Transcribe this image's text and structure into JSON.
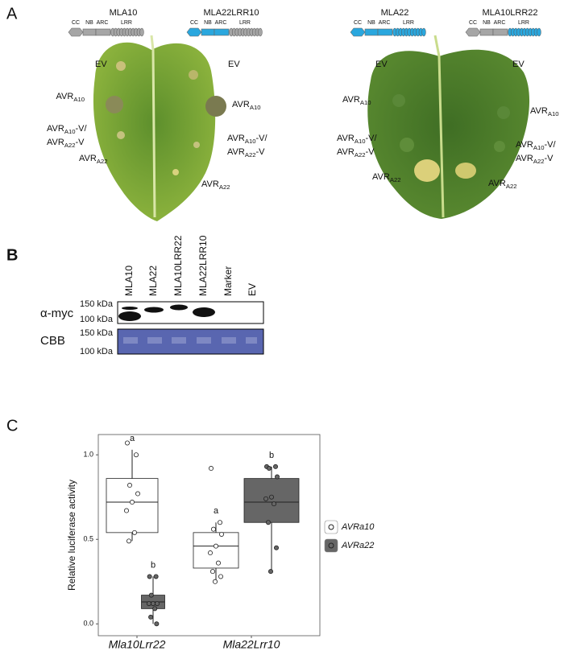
{
  "panel_a": {
    "label": "A",
    "leaves": [
      {
        "constructs": [
          {
            "name": "MLA10",
            "domains": [
              {
                "label": "CC",
                "color": "#a6a6a6"
              },
              {
                "label": "NB",
                "color": "#a6a6a6"
              },
              {
                "label": "ARC",
                "color": "#a6a6a6"
              },
              {
                "label": "LRR",
                "color": "#a6a6a6"
              }
            ]
          },
          {
            "name": "MLA22LRR10",
            "domains": [
              {
                "label": "CC",
                "color": "#2aa7de"
              },
              {
                "label": "NB",
                "color": "#2aa7de"
              },
              {
                "label": "ARC",
                "color": "#2aa7de"
              },
              {
                "label": "LRR",
                "color": "#a6a6a6"
              }
            ]
          }
        ],
        "annotations": [
          [
            [
              {
                "text": "EV"
              }
            ]
          ],
          [
            [
              {
                "text": "AVR"
              },
              {
                "sub": "A10"
              }
            ]
          ],
          [
            [
              {
                "text": "AVR"
              },
              {
                "sub": "A10"
              },
              {
                "text": "-V/"
              }
            ],
            [
              {
                "text": "AVR"
              },
              {
                "sub": "A22"
              },
              {
                "text": "-V"
              }
            ]
          ],
          [
            [
              {
                "text": "AVR"
              },
              {
                "sub": "A22"
              }
            ]
          ],
          [
            [
              {
                "text": "EV"
              }
            ]
          ],
          [
            [
              {
                "text": "AVR"
              },
              {
                "sub": "A10"
              }
            ]
          ],
          [
            [
              {
                "text": "AVR"
              },
              {
                "sub": "A10"
              },
              {
                "text": "-V/"
              }
            ],
            [
              {
                "text": "AVR"
              },
              {
                "sub": "A22"
              },
              {
                "text": "-V"
              }
            ]
          ],
          [
            [
              {
                "text": "AVR"
              },
              {
                "sub": "A22"
              }
            ]
          ]
        ]
      },
      {
        "constructs": [
          {
            "name": "MLA22",
            "domains": [
              {
                "label": "CC",
                "color": "#2aa7de"
              },
              {
                "label": "NB",
                "color": "#2aa7de"
              },
              {
                "label": "ARC",
                "color": "#2aa7de"
              },
              {
                "label": "LRR",
                "color": "#2aa7de"
              }
            ]
          },
          {
            "name": "MLA10LRR22",
            "domains": [
              {
                "label": "CC",
                "color": "#a6a6a6"
              },
              {
                "label": "NB",
                "color": "#a6a6a6"
              },
              {
                "label": "ARC",
                "color": "#a6a6a6"
              },
              {
                "label": "LRR",
                "color": "#2aa7de"
              }
            ]
          }
        ],
        "annotations": [
          [
            [
              {
                "text": "EV"
              }
            ]
          ],
          [
            [
              {
                "text": "AVR"
              },
              {
                "sub": "A10"
              }
            ]
          ],
          [
            [
              {
                "text": "AVR"
              },
              {
                "sub": "A10"
              },
              {
                "text": "-V/"
              }
            ],
            [
              {
                "text": "AVR"
              },
              {
                "sub": "A22"
              },
              {
                "text": "-V"
              }
            ]
          ],
          [
            [
              {
                "text": "AVR"
              },
              {
                "sub": "A22"
              }
            ]
          ],
          [
            [
              {
                "text": "EV"
              }
            ]
          ],
          [
            [
              {
                "text": "AVR"
              },
              {
                "sub": "A10"
              }
            ]
          ],
          [
            [
              {
                "text": "AVR"
              },
              {
                "sub": "A10"
              },
              {
                "text": "-V/"
              }
            ],
            [
              {
                "text": "AVR"
              },
              {
                "sub": "A22"
              },
              {
                "text": "-V"
              }
            ]
          ],
          [
            [
              {
                "text": "AVR"
              },
              {
                "sub": "A22"
              }
            ]
          ]
        ]
      }
    ]
  },
  "panel_b": {
    "label": "B",
    "lanes": [
      "MLA10",
      "MLA22",
      "MLA10LRR22",
      "MLA22LRR10",
      "Marker",
      "EV"
    ],
    "blots": [
      {
        "name": "α-myc",
        "markers": [
          "150 kDa",
          "100 kDa"
        ]
      },
      {
        "name": "CBB",
        "markers": [
          "150 kDa",
          "100 kDa"
        ]
      }
    ]
  },
  "chart_data": {
    "type": "box",
    "panel_label": "C",
    "y_label": "Relative luciferase activity",
    "categories": [
      "Mla10Lrr22",
      "Mla22Lrr10"
    ],
    "ylim": [
      -0.07,
      1.12
    ],
    "yticks": [
      {
        "value": 0,
        "label": "0.0"
      },
      {
        "value": 0.5,
        "label": "0.5"
      },
      {
        "value": 1,
        "label": "1.0"
      }
    ],
    "series": [
      {
        "name": "AVRa10",
        "color": "#ffffff",
        "letters": [
          "a",
          "a"
        ],
        "boxes": [
          {
            "min": 0.49,
            "q1": 0.54,
            "median": 0.72,
            "q3": 0.86,
            "max": 1.03,
            "points": [
              1.07,
              1.0,
              0.82,
              0.77,
              0.72,
              0.67,
              0.54,
              0.49
            ]
          },
          {
            "min": 0.25,
            "q1": 0.33,
            "median": 0.46,
            "q3": 0.54,
            "max": 0.6,
            "points": [
              0.92,
              0.6,
              0.56,
              0.53,
              0.46,
              0.42,
              0.36,
              0.31,
              0.28,
              0.25
            ]
          }
        ]
      },
      {
        "name": "AVRa22",
        "color": "#666666",
        "letters": [
          "b",
          "b"
        ],
        "boxes": [
          {
            "min": 0.0,
            "q1": 0.09,
            "median": 0.13,
            "q3": 0.17,
            "max": 0.28,
            "points": [
              0.28,
              0.28,
              0.17,
              0.12,
              0.12,
              0.12,
              0.09,
              0.04,
              0.0
            ]
          },
          {
            "min": 0.31,
            "q1": 0.6,
            "median": 0.72,
            "q3": 0.86,
            "max": 0.93,
            "points": [
              0.93,
              0.93,
              0.92,
              0.87,
              0.75,
              0.74,
              0.71,
              0.6,
              0.45,
              0.31
            ]
          }
        ]
      }
    ]
  }
}
